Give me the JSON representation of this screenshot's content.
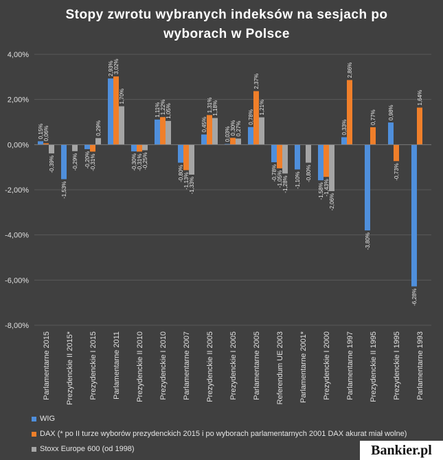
{
  "chart_data": {
    "type": "bar",
    "title": "Stopy zwrotu wybranych indeksów na sesjach po wyborach w Polsce",
    "title_lines": [
      "Stopy zwrotu wybranych indeksów na sesjach po",
      "wyborach w Polsce"
    ],
    "categories": [
      "Parlamentarne 2015",
      "Prezydenckie II 2015*",
      "Prezydenckie I 2015",
      "Parlamentarne 2011",
      "Prezydenckie II 2010",
      "Prezydenckie I 2010",
      "Parlamentarne 2007",
      "Prezydenckie II 2005",
      "Prezydenckie I 2005",
      "Parlamentarne 2005",
      "Referendum UE 2003",
      "Parlamentarne 2001*",
      "Prezydenckie I 2000",
      "Parlamentarne 1997",
      "Prezydenckie II 1995",
      "Prezydenckie I 1995",
      "Parlamentarne 1993"
    ],
    "series": [
      {
        "name": "WIG",
        "color": "#4f8fdc",
        "values": [
          0.15,
          -1.53,
          -0.2,
          2.93,
          -0.3,
          1.11,
          -0.8,
          0.45,
          0.03,
          0.78,
          -0.78,
          -1.1,
          -1.58,
          0.33,
          -3.8,
          0.98,
          -6.28
        ],
        "labels": [
          "0,15%",
          "-1,53%",
          "-0,20%",
          "2,93%",
          "-0,30%",
          "1,11%",
          "-0,80%",
          "0,45%",
          "0,03%",
          "0,78%",
          "-0,78%",
          "-1,10%",
          "-1,58%",
          "0,33%",
          "-3,80%",
          "0,98%",
          "-6,28%"
        ]
      },
      {
        "name": "DAX (* po II turze wyborów prezydenckich 2015 i po wyborach parlamentarnych 2001 DAX akurat miał wolne)",
        "color": "#f07f2a",
        "values": [
          0.06,
          null,
          -0.31,
          3.02,
          -0.31,
          1.22,
          -1.13,
          1.31,
          0.3,
          2.37,
          -1.05,
          null,
          -1.43,
          2.86,
          0.77,
          -0.73,
          1.64
        ],
        "labels": [
          "0,06%",
          null,
          "-0,31%",
          "3,02%",
          "-0,31%",
          "1,22%",
          "-1,13%",
          "1,31%",
          "0,30%",
          "2,37%",
          "-1,05%",
          null,
          "-1,43%",
          "2,86%",
          "0,77%",
          "-0,73%",
          "1,64%"
        ]
      },
      {
        "name": "Stoxx Europe 600 (od 1998)",
        "color": "#a5a5a5",
        "values": [
          -0.39,
          -0.29,
          0.29,
          1.7,
          -0.25,
          1.05,
          -1.33,
          1.18,
          0.27,
          1.21,
          -1.28,
          -0.8,
          -2.06,
          null,
          null,
          null,
          null
        ],
        "labels": [
          "-0,39%",
          "-0,29%",
          "0,29%",
          "1,70%",
          "-0,25%",
          "1,05%",
          "-1,33%",
          "1,18%",
          "0,27%",
          "1,21%",
          "-1,28%",
          "-0,80%",
          "-2,06%",
          null,
          null,
          null,
          null
        ]
      }
    ],
    "ylim": [
      -8,
      4
    ],
    "yticks": [
      4,
      2,
      0,
      -2,
      -4,
      -6,
      -8
    ],
    "ytick_labels": [
      "4,00%",
      "2,00%",
      "0,00%",
      "-2,00%",
      "-4,00%",
      "-6,00%",
      "-8,00%"
    ],
    "grid": true,
    "legend_position": "bottom-left"
  },
  "legend": {
    "items": [
      {
        "label": "WIG",
        "color": "#4f8fdc"
      },
      {
        "label": "DAX (* po II turze wyborów prezydenckich 2015 i po wyborach parlamentarnych 2001 DAX akurat miał wolne)",
        "color": "#f07f2a"
      },
      {
        "label": "Stoxx Europe 600 (od 1998)",
        "color": "#a5a5a5"
      }
    ]
  },
  "brand": {
    "logo_text": "Bankier.pl"
  }
}
